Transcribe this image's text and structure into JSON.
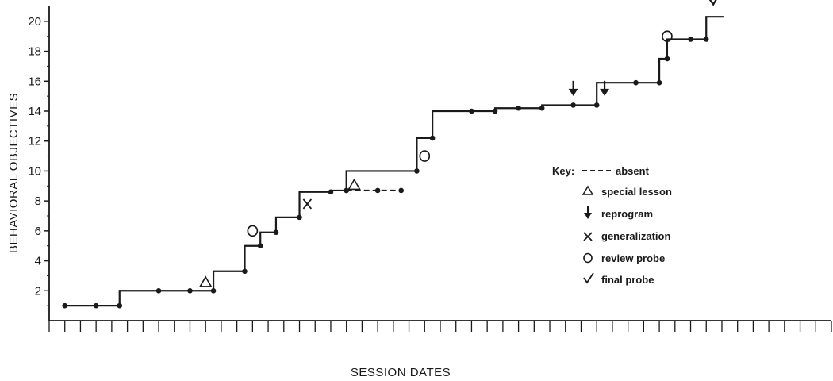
{
  "chart_data": {
    "type": "line",
    "title": "",
    "xlabel": "SESSION DATES",
    "ylabel": "BEHAVIORAL OBJECTIVES",
    "ylim": [
      0,
      21
    ],
    "yticks": [
      2,
      4,
      6,
      8,
      10,
      12,
      14,
      16,
      18,
      20
    ],
    "xlim": [
      0,
      50
    ],
    "grid": false,
    "legend_placement": "right",
    "series": [
      {
        "line_style": "solid",
        "points": [
          {
            "x": 1,
            "y": 1
          },
          {
            "x": 3,
            "y": 1
          },
          {
            "x": 4.5,
            "y": 1
          },
          {
            "x": 7,
            "y": 2
          },
          {
            "x": 9,
            "y": 2
          },
          {
            "x": 10.5,
            "y": 2
          },
          {
            "x": 12.5,
            "y": 3.3
          },
          {
            "x": 13.5,
            "y": 5
          },
          {
            "x": 14.5,
            "y": 5.9
          },
          {
            "x": 16,
            "y": 6.9
          },
          {
            "x": 18,
            "y": 8.6
          },
          {
            "x": 19,
            "y": 8.7
          },
          {
            "x": 23.5,
            "y": 10
          },
          {
            "x": 24.5,
            "y": 12.2
          },
          {
            "x": 27,
            "y": 14
          },
          {
            "x": 28.5,
            "y": 14
          },
          {
            "x": 30,
            "y": 14.2
          },
          {
            "x": 31.5,
            "y": 14.2
          },
          {
            "x": 33.5,
            "y": 14.4
          },
          {
            "x": 35,
            "y": 14.4
          },
          {
            "x": 37.5,
            "y": 15.9
          },
          {
            "x": 39,
            "y": 15.9
          },
          {
            "x": 39.5,
            "y": 17.5
          },
          {
            "x": 41,
            "y": 18.8
          },
          {
            "x": 42,
            "y": 18.8
          }
        ]
      },
      {
        "line_style": "dashed",
        "points": [
          {
            "x": 19,
            "y": 8.7
          },
          {
            "x": 21,
            "y": 8.7
          },
          {
            "x": 22.5,
            "y": 8.7
          }
        ]
      }
    ],
    "annotations": [
      {
        "type": "special lesson",
        "x": 10,
        "y": 2.6
      },
      {
        "type": "special lesson",
        "x": 19.5,
        "y": 9.1
      },
      {
        "type": "review probe",
        "x": 13,
        "y": 6
      },
      {
        "type": "review probe",
        "x": 24,
        "y": 11
      },
      {
        "type": "review probe",
        "x": 39.5,
        "y": 19
      },
      {
        "type": "generalization",
        "x": 16.5,
        "y": 7.8
      },
      {
        "type": "reprogram",
        "x": 33.5,
        "y": 15.6
      },
      {
        "type": "reprogram",
        "x": 35.5,
        "y": 15.6
      },
      {
        "type": "final probe",
        "x": 42.5,
        "y": 21.5
      }
    ],
    "legend": {
      "title": "Key:",
      "entries": [
        {
          "symbol": "---",
          "label": "absent"
        },
        {
          "symbol": "△",
          "label": "special lesson"
        },
        {
          "symbol": "reprogram-arrow",
          "label": "reprogram"
        },
        {
          "symbol": "X",
          "label": "generalization"
        },
        {
          "symbol": "O",
          "label": "review probe"
        },
        {
          "symbol": "✓",
          "label": "final probe"
        }
      ]
    }
  }
}
